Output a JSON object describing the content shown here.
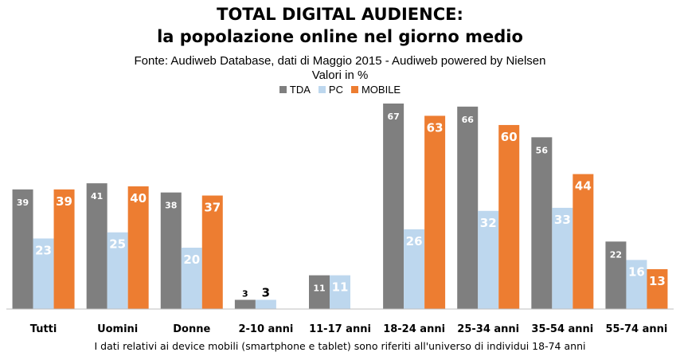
{
  "chart_data": {
    "type": "bar",
    "title": "TOTAL DIGITAL AUDIENCE:",
    "subtitle": "la popolazione online nel giorno medio",
    "source": "Fonte: Audiweb Database, dati di Maggio 2015 - Audiweb powered by Nielsen",
    "units": "Valori in %",
    "footnote": "I dati relativi ai device mobili (smartphone e tablet) sono riferiti all'universo di individui 18-74 anni",
    "categories": [
      "Tutti",
      "Uomini",
      "Donne",
      "2-10 anni",
      "11-17 anni",
      "18-24 anni",
      "25-34 anni",
      "35-54 anni",
      "55-74 anni"
    ],
    "series": [
      {
        "name": "TDA",
        "color": "#7f7f7f",
        "values": [
          39,
          41,
          38,
          3,
          11,
          67,
          66,
          56,
          22
        ]
      },
      {
        "name": "PC",
        "color": "#bdd7ee",
        "values": [
          23,
          25,
          20,
          3,
          11,
          26,
          32,
          33,
          16
        ]
      },
      {
        "name": "MOBILE",
        "color": "#ed7d31",
        "values": [
          39,
          40,
          37,
          null,
          null,
          63,
          60,
          44,
          13
        ]
      }
    ],
    "ylim": [
      0,
      67
    ],
    "grid": false,
    "legend_position": "top-center"
  }
}
